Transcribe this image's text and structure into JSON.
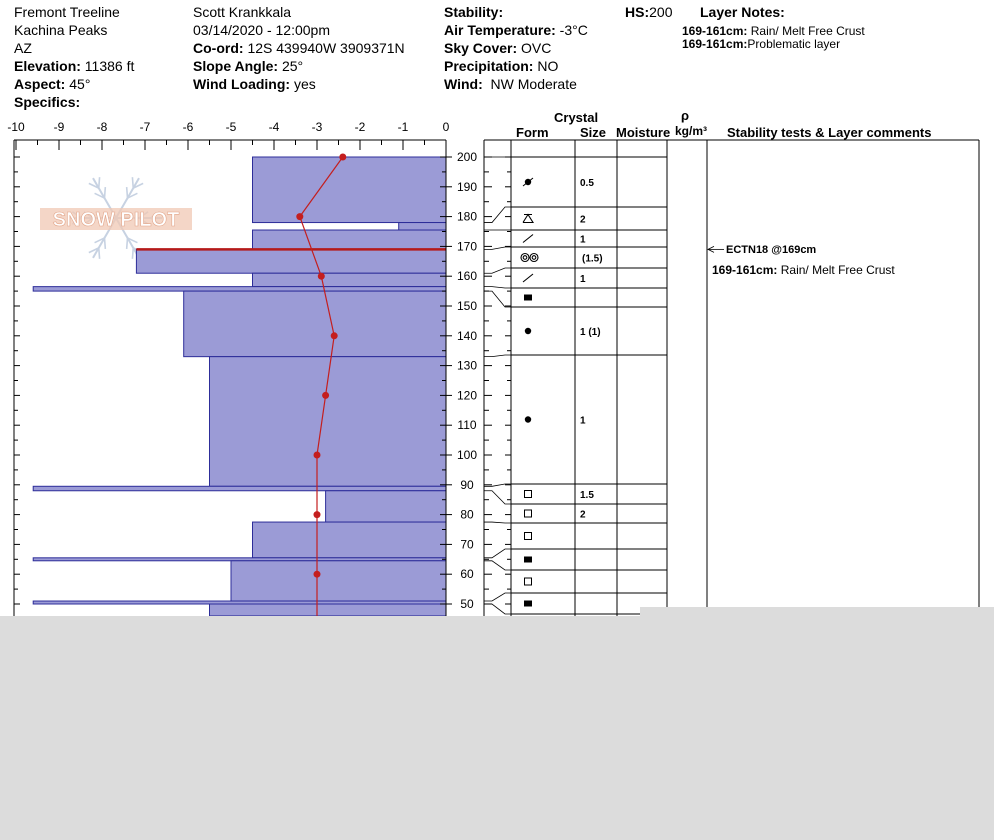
{
  "header": {
    "location": "Fremont Treeline",
    "range": "Kachina Peaks",
    "state": "AZ",
    "elevation_label": "Elevation:",
    "elevation_value": "11386 ft",
    "aspect_label": "Aspect:",
    "aspect_value": "45°",
    "specifics_label": "Specifics:",
    "observer": "Scott Krankkala",
    "datetime": "03/14/2020 - 12:00pm",
    "coord_label": "Co-ord:",
    "coord_value": "12S 439940W 3909371N",
    "slope_label": "Slope Angle:",
    "slope_value": "25°",
    "wind_loading_label": "Wind Loading:",
    "wind_loading_value": "yes",
    "stability_label": "Stability:",
    "air_temp_label": "Air Temperature:",
    "air_temp_value": "-3°C",
    "sky_label": "Sky Cover:",
    "sky_value": "OVC",
    "precip_label": "Precipitation:",
    "precip_value": "NO",
    "wind_label": "Wind:",
    "wind_value": "NW Moderate",
    "hs_label": "HS:",
    "hs_value": "200",
    "layer_notes_title": "Layer Notes:",
    "layer_notes": [
      {
        "range": "169-161cm:",
        "text": "Rain/ Melt Free Crust"
      },
      {
        "range": "169-161cm:",
        "text": "Problematic layer"
      }
    ]
  },
  "logo_text": "SNOW PILOT",
  "columns": {
    "crystal": "Crystal",
    "form": "Form",
    "size": "Size",
    "moisture": "Moisture",
    "rho": "ρ",
    "density_unit": "kg/m³",
    "stability": "Stability tests & Layer comments"
  },
  "comments": {
    "test": "ECTN18 @169cm",
    "layer_range": "169-161cm:",
    "layer_text": "Rain/ Melt Free Crust"
  },
  "colors": {
    "hardness_fill": "#9b9bd6",
    "hardness_stroke": "#2d2d99",
    "temp_line": "#c41e1e",
    "crust_line": "#b51a1a"
  },
  "chart_data": {
    "type": "bar",
    "temperature_axis": {
      "min": -10,
      "max": 0,
      "ticks": [
        -10,
        -9,
        -8,
        -7,
        -6,
        -5,
        -4,
        -3,
        -2,
        -1,
        0
      ]
    },
    "height_axis": {
      "ticks": [
        200,
        190,
        180,
        170,
        160,
        150,
        140,
        130,
        120,
        110,
        100,
        90,
        80,
        70,
        60,
        50
      ]
    },
    "hardness_layers": [
      {
        "top": 200,
        "bottom": 178,
        "value": -4.5
      },
      {
        "top": 178,
        "bottom": 175.5,
        "value": -1.1
      },
      {
        "top": 175.5,
        "bottom": 169,
        "value": -4.5
      },
      {
        "top": 169,
        "bottom": 161,
        "value": -7.2
      },
      {
        "top": 161,
        "bottom": 156.5,
        "value": -4.5
      },
      {
        "top": 156.5,
        "bottom": 155,
        "value": -9.6
      },
      {
        "top": 155,
        "bottom": 133,
        "value": -6.1
      },
      {
        "top": 133,
        "bottom": 89.5,
        "value": -5.5
      },
      {
        "top": 89.5,
        "bottom": 88,
        "value": -9.6
      },
      {
        "top": 88,
        "bottom": 77.5,
        "value": -2.8
      },
      {
        "top": 77.5,
        "bottom": 65.5,
        "value": -4.5
      },
      {
        "top": 65.5,
        "bottom": 64.5,
        "value": -9.6
      },
      {
        "top": 64.5,
        "bottom": 51,
        "value": -5.0
      },
      {
        "top": 51,
        "bottom": 50,
        "value": -9.6
      },
      {
        "top": 50,
        "bottom": 46,
        "value": -5.5
      }
    ],
    "crust_layer": {
      "height": 169,
      "value": -7.2
    },
    "temperature_profile": [
      {
        "height": 200,
        "temp": -2.4
      },
      {
        "height": 180,
        "temp": -3.4
      },
      {
        "height": 160,
        "temp": -2.9
      },
      {
        "height": 140,
        "temp": -2.6
      },
      {
        "height": 120,
        "temp": -2.8
      },
      {
        "height": 100,
        "temp": -3.0
      },
      {
        "height": 80,
        "temp": -3.0
      },
      {
        "height": 60,
        "temp": -3.0
      },
      {
        "height": 46,
        "temp": -3.0
      }
    ],
    "crystal_layers": [
      {
        "top": 200,
        "bottom": 178,
        "form": "melt-freeze-ir",
        "size": "0.5"
      },
      {
        "top": 178,
        "bottom": 175.5,
        "form": "surface-hoar-faceted",
        "size": "2"
      },
      {
        "top": 175.5,
        "bottom": 169,
        "form": "slash",
        "size": "1"
      },
      {
        "top": 169,
        "bottom": 161,
        "form": "melt-clusters",
        "size": "(1.5)"
      },
      {
        "top": 161,
        "bottom": 156.5,
        "form": "slash",
        "size": "1"
      },
      {
        "top": 156.5,
        "bottom": 155,
        "form": "ice-layer",
        "size": ""
      },
      {
        "top": 155,
        "bottom": 133,
        "form": "round",
        "size": "1 (1)"
      },
      {
        "top": 133,
        "bottom": 89.5,
        "form": "round",
        "size": "1"
      },
      {
        "top": 89.5,
        "bottom": 88,
        "form": "faceted",
        "size": "1.5"
      },
      {
        "top": 88,
        "bottom": 77.5,
        "form": "faceted",
        "size": "2"
      },
      {
        "top": 77.5,
        "bottom": 65.5,
        "form": "faceted",
        "size": ""
      },
      {
        "top": 65.5,
        "bottom": 64.5,
        "form": "ice-layer",
        "size": ""
      },
      {
        "top": 64.5,
        "bottom": 51,
        "form": "faceted",
        "size": ""
      },
      {
        "top": 51,
        "bottom": 50,
        "form": "ice-layer",
        "size": ""
      }
    ]
  }
}
